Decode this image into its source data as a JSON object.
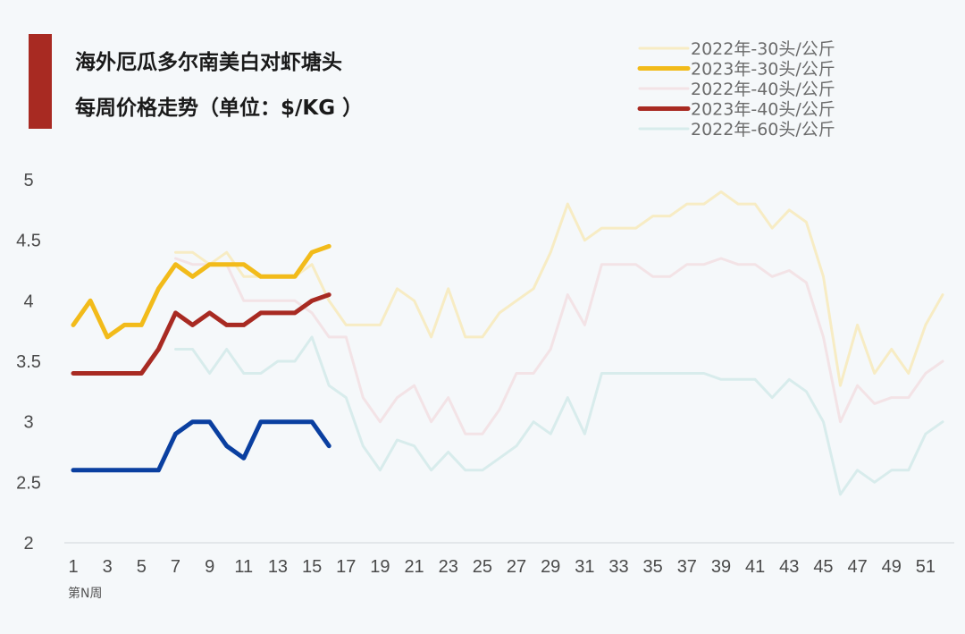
{
  "chart_data": {
    "type": "line",
    "title_lines": [
      "海外厄瓜多尔南美白对虾塘头",
      "每周价格走势（单位：$/KG ）"
    ],
    "xlabel": "第N周",
    "ylabel": "",
    "x": [
      1,
      2,
      3,
      4,
      5,
      6,
      7,
      8,
      9,
      10,
      11,
      12,
      13,
      14,
      15,
      16,
      17,
      18,
      19,
      20,
      21,
      22,
      23,
      24,
      25,
      26,
      27,
      28,
      29,
      30,
      31,
      32,
      33,
      34,
      35,
      36,
      37,
      38,
      39,
      40,
      41,
      42,
      43,
      44,
      45,
      46,
      47,
      48,
      49,
      50,
      51,
      52
    ],
    "x_tick_labels": [
      "1",
      "3",
      "5",
      "7",
      "9",
      "11",
      "13",
      "15",
      "17",
      "19",
      "21",
      "23",
      "25",
      "27",
      "29",
      "31",
      "33",
      "35",
      "37",
      "39",
      "41",
      "43",
      "45",
      "47",
      "49",
      "51"
    ],
    "y_tick_labels": [
      "2",
      "2.5",
      "3",
      "3.5",
      "4",
      "4.5",
      "5"
    ],
    "ylim": [
      2,
      5
    ],
    "xlim": [
      1,
      52
    ],
    "grid": false,
    "legend_position": "top-right",
    "series": [
      {
        "name": "2022年-30头/公斤",
        "color": "#f7ecc4",
        "width": 3,
        "values": [
          null,
          null,
          null,
          null,
          null,
          null,
          4.4,
          4.4,
          4.3,
          4.4,
          4.2,
          4.2,
          4.2,
          4.2,
          4.3,
          4.0,
          3.8,
          3.8,
          3.8,
          4.1,
          4.0,
          3.7,
          4.1,
          3.7,
          3.7,
          3.9,
          4.0,
          4.1,
          4.4,
          4.8,
          4.5,
          4.6,
          4.6,
          4.6,
          4.7,
          4.7,
          4.8,
          4.8,
          4.9,
          4.8,
          4.8,
          4.6,
          4.75,
          4.65,
          4.2,
          3.3,
          3.8,
          3.4,
          3.6,
          3.4,
          3.8,
          4.05
        ]
      },
      {
        "name": "2023年-30头/公斤",
        "color": "#f2bb1a",
        "width": 5,
        "values": [
          3.8,
          4.0,
          3.7,
          3.8,
          3.8,
          4.1,
          4.3,
          4.2,
          4.3,
          4.3,
          4.3,
          4.2,
          4.2,
          4.2,
          4.4,
          4.45,
          null,
          null,
          null,
          null,
          null,
          null,
          null,
          null,
          null,
          null,
          null,
          null,
          null,
          null,
          null,
          null,
          null,
          null,
          null,
          null,
          null,
          null,
          null,
          null,
          null,
          null,
          null,
          null,
          null,
          null,
          null,
          null,
          null,
          null,
          null,
          null
        ]
      },
      {
        "name": "2022年-40头/公斤",
        "color": "#f3e3e6",
        "width": 3,
        "values": [
          null,
          null,
          null,
          null,
          null,
          null,
          4.35,
          4.3,
          4.3,
          4.3,
          4.0,
          4.0,
          4.0,
          4.0,
          3.9,
          3.7,
          3.7,
          3.2,
          3.0,
          3.2,
          3.3,
          3.0,
          3.2,
          2.9,
          2.9,
          3.1,
          3.4,
          3.4,
          3.6,
          4.05,
          3.8,
          4.3,
          4.3,
          4.3,
          4.2,
          4.2,
          4.3,
          4.3,
          4.35,
          4.3,
          4.3,
          4.2,
          4.25,
          4.15,
          3.7,
          3.0,
          3.3,
          3.15,
          3.2,
          3.2,
          3.4,
          3.5
        ]
      },
      {
        "name": "2023年-40头/公斤",
        "color": "#a82a22",
        "width": 5,
        "values": [
          3.4,
          3.4,
          3.4,
          3.4,
          3.4,
          3.6,
          3.9,
          3.8,
          3.9,
          3.8,
          3.8,
          3.9,
          3.9,
          3.9,
          4.0,
          4.05,
          null,
          null,
          null,
          null,
          null,
          null,
          null,
          null,
          null,
          null,
          null,
          null,
          null,
          null,
          null,
          null,
          null,
          null,
          null,
          null,
          null,
          null,
          null,
          null,
          null,
          null,
          null,
          null,
          null,
          null,
          null,
          null,
          null,
          null,
          null,
          null
        ]
      },
      {
        "name": "2022年-60头/公斤",
        "color": "#d8ecec",
        "width": 3,
        "values": [
          null,
          null,
          null,
          null,
          null,
          null,
          3.6,
          3.6,
          3.4,
          3.6,
          3.4,
          3.4,
          3.5,
          3.5,
          3.7,
          3.3,
          3.2,
          2.8,
          2.6,
          2.85,
          2.8,
          2.6,
          2.75,
          2.6,
          2.6,
          2.7,
          2.8,
          3.0,
          2.9,
          3.2,
          2.9,
          3.4,
          3.4,
          3.4,
          3.4,
          3.4,
          3.4,
          3.4,
          3.35,
          3.35,
          3.35,
          3.2,
          3.35,
          3.25,
          3.0,
          2.4,
          2.6,
          2.5,
          2.6,
          2.6,
          2.9,
          3.0
        ]
      },
      {
        "name": "",
        "color": "#0a3fa0",
        "width": 5,
        "values": [
          2.6,
          2.6,
          2.6,
          2.6,
          2.6,
          2.6,
          2.9,
          3.0,
          3.0,
          2.8,
          2.7,
          3.0,
          3.0,
          3.0,
          3.0,
          2.8,
          null,
          null,
          null,
          null,
          null,
          null,
          null,
          null,
          null,
          null,
          null,
          null,
          null,
          null,
          null,
          null,
          null,
          null,
          null,
          null,
          null,
          null,
          null,
          null,
          null,
          null,
          null,
          null,
          null,
          null,
          null,
          null,
          null,
          null,
          null,
          null
        ]
      }
    ],
    "legend_entries": [
      0,
      1,
      2,
      3,
      4
    ],
    "accent_bar_color": "#a82a22"
  }
}
